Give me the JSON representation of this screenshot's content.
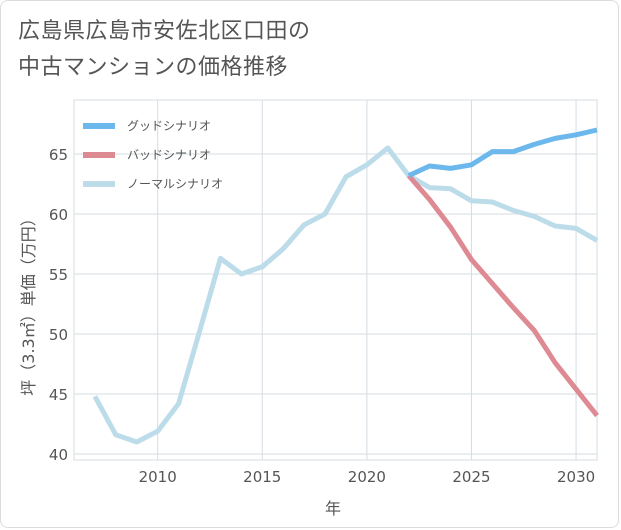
{
  "title_line1": "広島県広島市安佐北区口田の",
  "title_line2": "中古マンションの価格推移",
  "chart_data": {
    "type": "line",
    "xlabel": "年",
    "ylabel": "坪（3.3㎡）単価（万円）",
    "xlim": [
      2006,
      2031
    ],
    "ylim": [
      39.5,
      69.5
    ],
    "x_ticks": [
      2010,
      2015,
      2020,
      2025,
      2030
    ],
    "y_ticks": [
      40,
      45,
      50,
      55,
      60,
      65
    ],
    "grid": true,
    "legend_position": "top-left",
    "series": [
      {
        "name": "グッドシナリオ",
        "color": "#6cb8ec",
        "x": [
          2022,
          2023,
          2024,
          2025,
          2026,
          2027,
          2028,
          2029,
          2030,
          2031
        ],
        "values": [
          63.2,
          64.0,
          63.8,
          64.1,
          65.2,
          65.2,
          65.8,
          66.3,
          66.6,
          67.0
        ]
      },
      {
        "name": "バッドシナリオ",
        "color": "#de8a93",
        "x": [
          2022,
          2023,
          2024,
          2025,
          2026,
          2027,
          2028,
          2029,
          2030,
          2031
        ],
        "values": [
          63.2,
          61.2,
          58.9,
          56.2,
          54.2,
          52.2,
          50.3,
          47.6,
          45.4,
          43.2
        ]
      },
      {
        "name": "ノーマルシナリオ",
        "color": "#bcdcea",
        "x": [
          2007,
          2008,
          2009,
          2010,
          2011,
          2012,
          2013,
          2014,
          2015,
          2016,
          2017,
          2018,
          2019,
          2020,
          2021,
          2022,
          2023,
          2024,
          2025,
          2026,
          2027,
          2028,
          2029,
          2030,
          2031
        ],
        "values": [
          44.8,
          41.6,
          41.0,
          41.9,
          44.2,
          50.2,
          56.3,
          55.0,
          55.6,
          57.1,
          59.1,
          60.0,
          63.1,
          64.1,
          65.5,
          63.2,
          62.2,
          62.1,
          61.1,
          61.0,
          60.3,
          59.8,
          59.0,
          58.8,
          57.8
        ]
      }
    ]
  }
}
